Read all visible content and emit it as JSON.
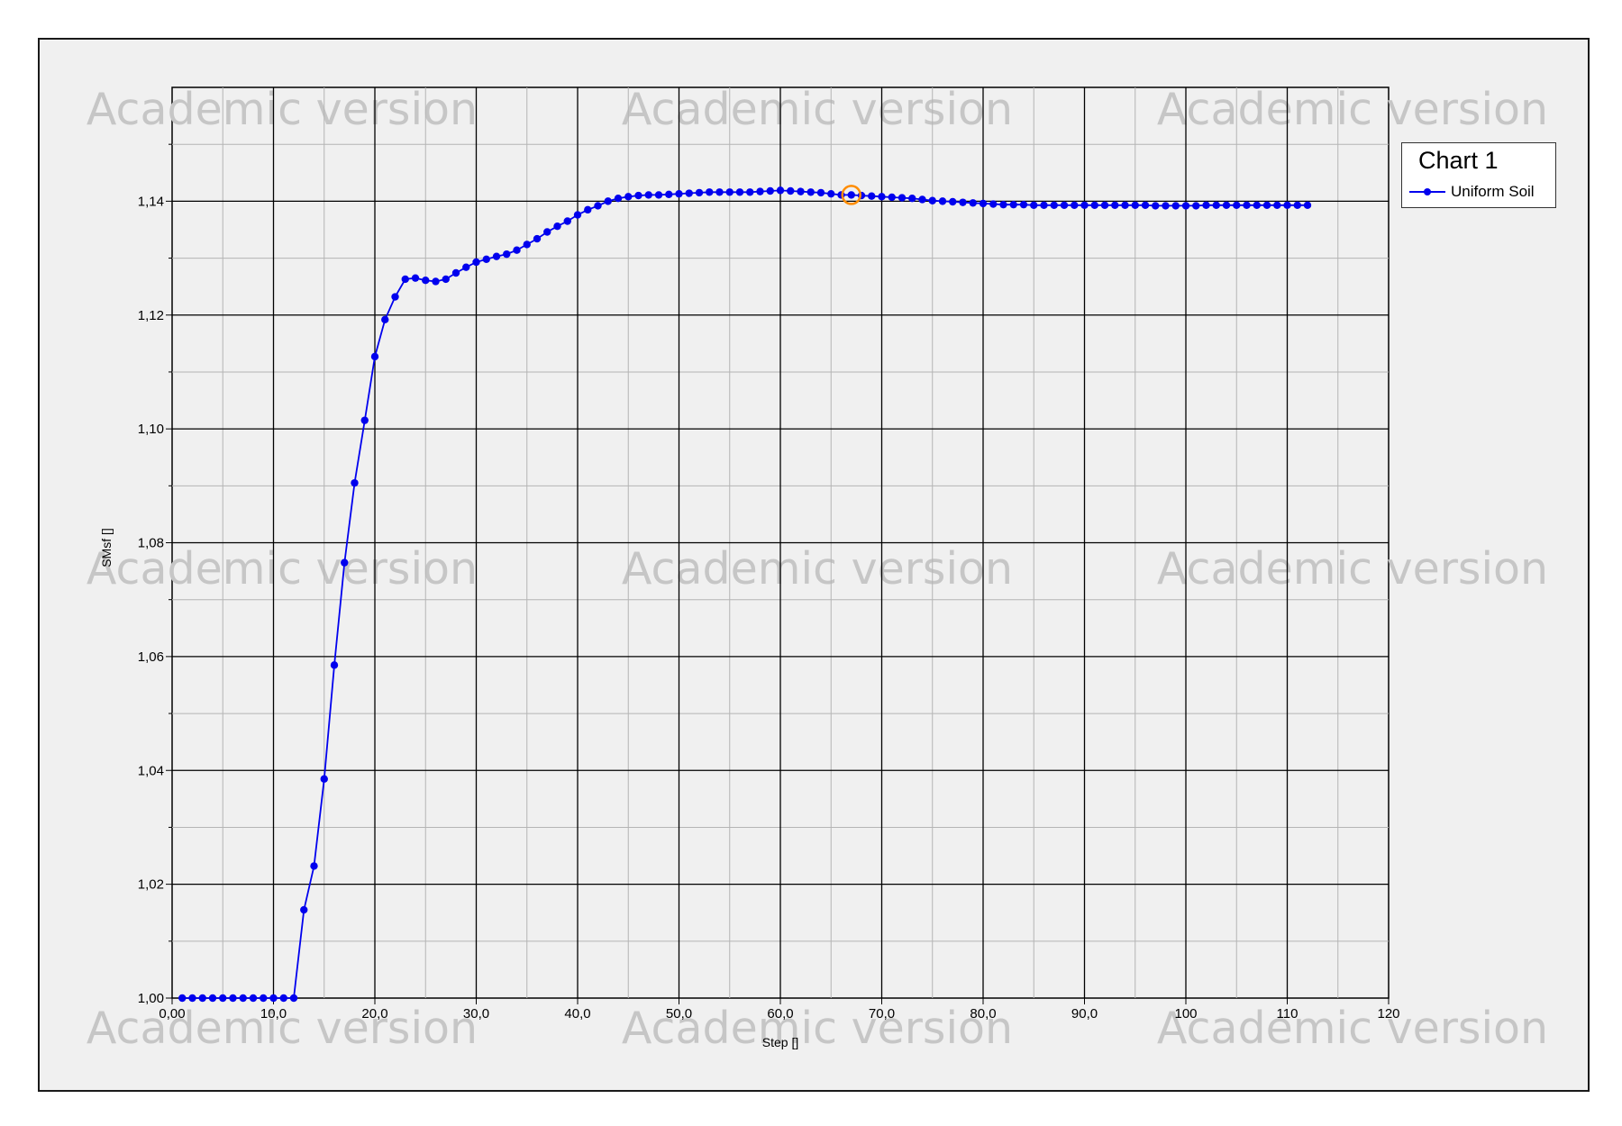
{
  "watermark_text": "Academic version",
  "chart_data": {
    "type": "line",
    "title": "",
    "xlabel": "Step []",
    "ylabel": "SMsf []",
    "xlim": [
      0,
      120
    ],
    "ylim": [
      1.0,
      1.16
    ],
    "x_ticks": [
      0,
      10,
      20,
      30,
      40,
      50,
      60,
      70,
      80,
      90,
      100,
      110,
      120
    ],
    "x_tick_labels": [
      "0,00",
      "10,0",
      "20,0",
      "30,0",
      "40,0",
      "50,0",
      "60,0",
      "70,0",
      "80,0",
      "90,0",
      "100",
      "110",
      "120"
    ],
    "y_ticks": [
      1.0,
      1.02,
      1.04,
      1.06,
      1.08,
      1.1,
      1.12,
      1.14
    ],
    "y_tick_labels": [
      "1,00",
      "1,02",
      "1,04",
      "1,06",
      "1,08",
      "1,10",
      "1,12",
      "1,14"
    ],
    "grid": true,
    "legend": {
      "title": "Chart 1",
      "position": "top-right"
    },
    "highlighted_point": {
      "x": 67,
      "y": 1.1411
    },
    "colors": {
      "series": "#0000ee",
      "highlight": "#ff8c00"
    },
    "series": [
      {
        "name": "Uniform Soil",
        "x": [
          1,
          2,
          3,
          4,
          5,
          6,
          7,
          8,
          9,
          10,
          11,
          12,
          13,
          14,
          15,
          16,
          17,
          18,
          19,
          20,
          21,
          22,
          23,
          24,
          25,
          26,
          27,
          28,
          29,
          30,
          31,
          32,
          33,
          34,
          35,
          36,
          37,
          38,
          39,
          40,
          41,
          42,
          43,
          44,
          45,
          46,
          47,
          48,
          49,
          50,
          51,
          52,
          53,
          54,
          55,
          56,
          57,
          58,
          59,
          60,
          61,
          62,
          63,
          64,
          65,
          66,
          67,
          68,
          69,
          70,
          71,
          72,
          73,
          74,
          75,
          76,
          77,
          78,
          79,
          80,
          81,
          82,
          83,
          84,
          85,
          86,
          87,
          88,
          89,
          90,
          91,
          92,
          93,
          94,
          95,
          96,
          97,
          98,
          99,
          100,
          101,
          102,
          103,
          104,
          105,
          106,
          107,
          108,
          109,
          110,
          111,
          112
        ],
        "values": [
          1.0,
          1.0,
          1.0,
          1.0,
          1.0,
          1.0,
          1.0,
          1.0,
          1.0,
          1.0,
          1.0,
          1.0,
          1.0155,
          1.0232,
          1.0385,
          1.0585,
          1.0765,
          1.0905,
          1.1015,
          1.1127,
          1.1192,
          1.1232,
          1.1263,
          1.1265,
          1.1261,
          1.1259,
          1.1263,
          1.1274,
          1.1284,
          1.1293,
          1.1298,
          1.1303,
          1.1307,
          1.1314,
          1.1324,
          1.1334,
          1.1346,
          1.1356,
          1.1365,
          1.1376,
          1.1385,
          1.1392,
          1.14,
          1.1405,
          1.1408,
          1.141,
          1.1411,
          1.1411,
          1.1412,
          1.1413,
          1.1414,
          1.1415,
          1.1416,
          1.1416,
          1.1416,
          1.1416,
          1.1416,
          1.1417,
          1.1418,
          1.1419,
          1.1418,
          1.1417,
          1.1416,
          1.1415,
          1.1413,
          1.1411,
          1.1411,
          1.141,
          1.1409,
          1.1408,
          1.1407,
          1.1406,
          1.1405,
          1.1403,
          1.1401,
          1.14,
          1.1399,
          1.1398,
          1.1397,
          1.1396,
          1.1395,
          1.1394,
          1.1394,
          1.1394,
          1.1393,
          1.1393,
          1.1393,
          1.1393,
          1.1393,
          1.1393,
          1.1393,
          1.1393,
          1.1393,
          1.1393,
          1.1393,
          1.1393,
          1.1392,
          1.1392,
          1.1392,
          1.1392,
          1.1392,
          1.1393,
          1.1393,
          1.1393,
          1.1393,
          1.1393,
          1.1393,
          1.1393,
          1.1393,
          1.1393,
          1.1393,
          1.1393
        ]
      }
    ]
  }
}
